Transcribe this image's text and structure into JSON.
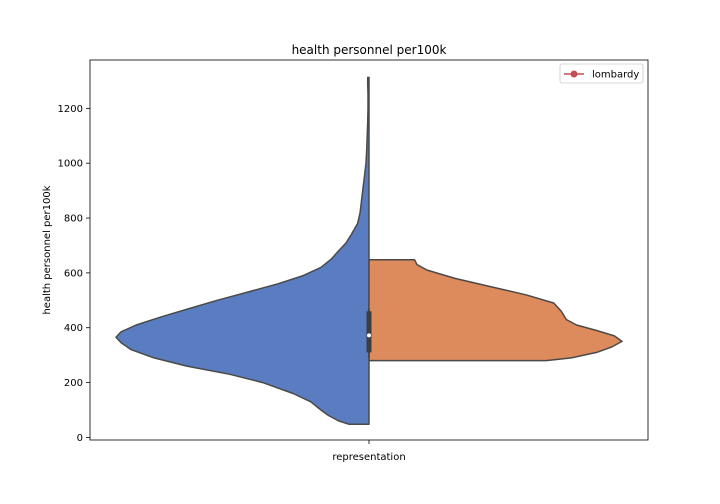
{
  "chart_data": {
    "type": "violin",
    "title": "health personnel per100k",
    "xlabel": "",
    "ylabel": "health personnel per100k",
    "categories": [
      "representation"
    ],
    "ylim": [
      -10,
      1335
    ],
    "yticks": [
      0,
      200,
      400,
      600,
      800,
      1000,
      1200
    ],
    "grid": false,
    "legend": {
      "position": "top-right",
      "entries": [
        {
          "label": "lombardy",
          "color": "#c44e52",
          "marker": "circle"
        }
      ]
    },
    "split": true,
    "series": [
      {
        "side": "left",
        "color": "#5a7dc2",
        "min": 48,
        "max": 1313,
        "profile": [
          [
            48,
            0.08
          ],
          [
            60,
            0.12
          ],
          [
            80,
            0.16
          ],
          [
            100,
            0.19
          ],
          [
            130,
            0.23
          ],
          [
            160,
            0.3
          ],
          [
            200,
            0.42
          ],
          [
            230,
            0.55
          ],
          [
            260,
            0.72
          ],
          [
            290,
            0.85
          ],
          [
            320,
            0.94
          ],
          [
            345,
            0.98
          ],
          [
            365,
            1.0
          ],
          [
            385,
            0.98
          ],
          [
            410,
            0.92
          ],
          [
            440,
            0.82
          ],
          [
            470,
            0.71
          ],
          [
            500,
            0.6
          ],
          [
            530,
            0.48
          ],
          [
            560,
            0.36
          ],
          [
            590,
            0.26
          ],
          [
            620,
            0.19
          ],
          [
            650,
            0.15
          ],
          [
            680,
            0.12
          ],
          [
            710,
            0.09
          ],
          [
            740,
            0.07
          ],
          [
            780,
            0.045
          ],
          [
            820,
            0.035
          ],
          [
            860,
            0.03
          ],
          [
            900,
            0.025
          ],
          [
            950,
            0.018
          ],
          [
            1000,
            0.012
          ],
          [
            1050,
            0.009
          ],
          [
            1100,
            0.007
          ],
          [
            1150,
            0.005
          ],
          [
            1200,
            0.004
          ],
          [
            1250,
            0.004
          ],
          [
            1290,
            0.005
          ],
          [
            1313,
            0.005
          ]
        ]
      },
      {
        "side": "right",
        "color": "#dd8a5c",
        "min": 280,
        "max": 648,
        "profile": [
          [
            280,
            0.7
          ],
          [
            290,
            0.8
          ],
          [
            310,
            0.9
          ],
          [
            330,
            0.96
          ],
          [
            350,
            1.0
          ],
          [
            370,
            0.97
          ],
          [
            390,
            0.9
          ],
          [
            410,
            0.82
          ],
          [
            430,
            0.78
          ],
          [
            460,
            0.76
          ],
          [
            490,
            0.73
          ],
          [
            520,
            0.62
          ],
          [
            550,
            0.48
          ],
          [
            580,
            0.34
          ],
          [
            610,
            0.23
          ],
          [
            630,
            0.19
          ],
          [
            648,
            0.18
          ]
        ]
      }
    ],
    "box": {
      "q1": 310,
      "q3": 460,
      "median": 372,
      "whisker_low": 290,
      "whisker_high": 470
    }
  }
}
